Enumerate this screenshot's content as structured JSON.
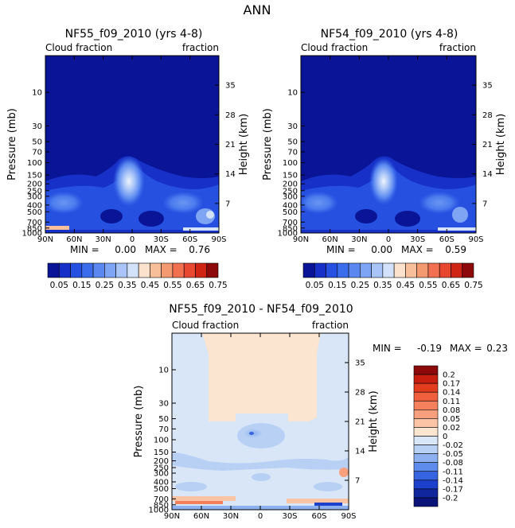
{
  "page_title": "ANN",
  "chart_data": [
    {
      "type": "heatmap",
      "title": "NF55_f09_2010 (yrs 4-8)",
      "left_label": "Cloud fraction",
      "right_label": "fraction",
      "xlabel": "",
      "ylabel": "Pressure (mb)",
      "y2label": "Height (km)",
      "x_ticks": [
        "90N",
        "60N",
        "30N",
        "0",
        "30S",
        "60S",
        "90S"
      ],
      "x_values": [
        90,
        60,
        30,
        0,
        -30,
        -60,
        -90
      ],
      "y_ticks": [
        "10",
        "30",
        "50",
        "70",
        "100",
        "150",
        "200",
        "250",
        "300",
        "400",
        "500",
        "700",
        "850",
        "1000"
      ],
      "y_values": [
        10,
        30,
        50,
        70,
        100,
        150,
        200,
        250,
        300,
        400,
        500,
        700,
        850,
        1000
      ],
      "height_ticks": [
        "35",
        "28",
        "21",
        "14",
        "7"
      ],
      "height_values": [
        35,
        28,
        21,
        14,
        7
      ],
      "stats": {
        "min_label": "MIN =",
        "min": "0.00",
        "max_label": "MAX =",
        "max": "0.76"
      },
      "colorbar": {
        "labels": [
          "0.05",
          "0.15",
          "0.25",
          "0.35",
          "0.45",
          "0.55",
          "0.65",
          "0.75"
        ],
        "colors": [
          "#0a1496",
          "#1630c8",
          "#2650e0",
          "#3a6cec",
          "#5a88f0",
          "#7ea4f4",
          "#a8c4f8",
          "#d2e2fa",
          "#fbe2cc",
          "#f8c09a",
          "#f49a70",
          "#f07050",
          "#e84830",
          "#d02414",
          "#8c0a0a"
        ]
      }
    },
    {
      "type": "heatmap",
      "title": "NF54_f09_2010 (yrs 4-8)",
      "left_label": "Cloud fraction",
      "right_label": "fraction",
      "xlabel": "",
      "ylabel": "Pressure (mb)",
      "y2label": "Height (km)",
      "x_ticks": [
        "90N",
        "60N",
        "30N",
        "0",
        "30S",
        "60S",
        "90S"
      ],
      "x_values": [
        90,
        60,
        30,
        0,
        -30,
        -60,
        -90
      ],
      "y_ticks": [
        "10",
        "30",
        "50",
        "70",
        "100",
        "150",
        "200",
        "250",
        "300",
        "400",
        "500",
        "700",
        "850",
        "1000"
      ],
      "y_values": [
        10,
        30,
        50,
        70,
        100,
        150,
        200,
        250,
        300,
        400,
        500,
        700,
        850,
        1000
      ],
      "height_ticks": [
        "35",
        "28",
        "21",
        "14",
        "7"
      ],
      "height_values": [
        35,
        28,
        21,
        14,
        7
      ],
      "stats": {
        "min_label": "MIN =",
        "min": "0.00",
        "max_label": "MAX =",
        "max": "0.59"
      },
      "colorbar": {
        "labels": [
          "0.05",
          "0.15",
          "0.25",
          "0.35",
          "0.45",
          "0.55",
          "0.65",
          "0.75"
        ],
        "colors": [
          "#0a1496",
          "#1630c8",
          "#2650e0",
          "#3a6cec",
          "#5a88f0",
          "#7ea4f4",
          "#a8c4f8",
          "#d2e2fa",
          "#fbe2cc",
          "#f8c09a",
          "#f49a70",
          "#f07050",
          "#e84830",
          "#d02414",
          "#8c0a0a"
        ]
      }
    },
    {
      "type": "heatmap",
      "title": "NF55_f09_2010 - NF54_f09_2010",
      "left_label": "Cloud fraction",
      "right_label": "fraction",
      "xlabel": "",
      "ylabel": "Pressure (mb)",
      "y2label": "Height (km)",
      "x_ticks": [
        "90N",
        "60N",
        "30N",
        "0",
        "30S",
        "60S",
        "90S"
      ],
      "x_values": [
        90,
        60,
        30,
        0,
        -30,
        -60,
        -90
      ],
      "y_ticks": [
        "10",
        "30",
        "50",
        "70",
        "100",
        "150",
        "200",
        "250",
        "300",
        "400",
        "500",
        "700",
        "850",
        "1000"
      ],
      "y_values": [
        10,
        30,
        50,
        70,
        100,
        150,
        200,
        250,
        300,
        400,
        500,
        700,
        850,
        1000
      ],
      "height_ticks": [
        "35",
        "28",
        "21",
        "14",
        "7"
      ],
      "height_values": [
        35,
        28,
        21,
        14,
        7
      ],
      "stats": {
        "min_label": "MIN =",
        "min": "-0.19",
        "max_label": "MAX =",
        "max": "0.23"
      },
      "colorbar": {
        "labels": [
          "0.2",
          "0.17",
          "0.14",
          "0.11",
          "0.08",
          "0.05",
          "0.02",
          "0",
          "-0.02",
          "-0.05",
          "-0.08",
          "-0.11",
          "-0.14",
          "-0.17",
          "-0.2"
        ],
        "colors": [
          "#8c0a0a",
          "#c81e10",
          "#e43c1e",
          "#f0603c",
          "#f4805c",
          "#f8a07e",
          "#fbc4a4",
          "#fbe4d0",
          "#d8e6f8",
          "#b8d0f4",
          "#8cb0f0",
          "#5e8cec",
          "#3664e0",
          "#1c40cc",
          "#10269c",
          "#0a1478"
        ]
      }
    }
  ]
}
